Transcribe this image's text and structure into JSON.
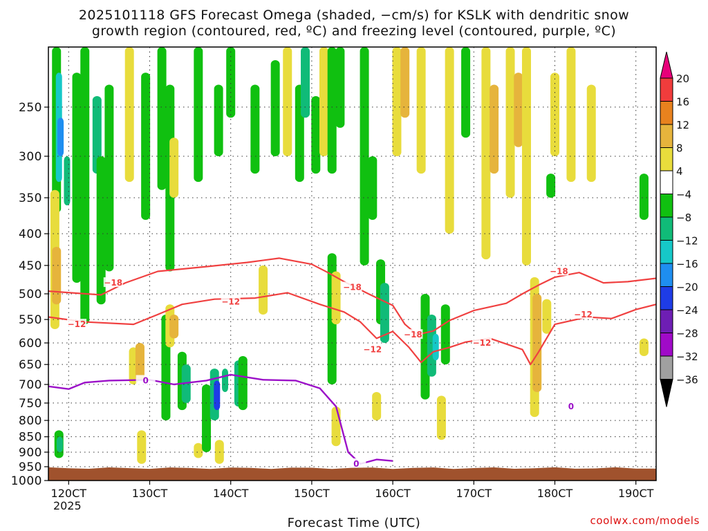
{
  "title_line1": "2025101118 GFS Forecast Omega (shaded, −cm/s) for KSLK with dendritic snow",
  "title_line2": "growth region (contoured, red, ºC) and freezing level (contoured, purple, ºC)",
  "credit": "coolwx.com/models",
  "chart_data": {
    "type": "heatmap",
    "title": "2025101118 GFS Forecast Omega (shaded, −cm/s) for KSLK with dendritic snow growth region (contoured, red, ºC) and freezing level (contoured, purple, ºC)",
    "xlabel": "Forecast Time (UTC)",
    "ylabel": "",
    "x_range_hours": [
      117.5,
      192.5
    ],
    "y_range_hPa": [
      200,
      1000
    ],
    "y_scale": "log-pressure",
    "grid": true,
    "x_ticks": [
      {
        "hour": 120,
        "label": "120CT",
        "sub": "2025"
      },
      {
        "hour": 130,
        "label": "130CT"
      },
      {
        "hour": 140,
        "label": "140CT"
      },
      {
        "hour": 150,
        "label": "150CT"
      },
      {
        "hour": 160,
        "label": "160CT"
      },
      {
        "hour": 170,
        "label": "170CT"
      },
      {
        "hour": 180,
        "label": "180CT"
      },
      {
        "hour": 190,
        "label": "190CT"
      }
    ],
    "y_ticks": [
      250,
      300,
      350,
      400,
      450,
      500,
      550,
      600,
      650,
      700,
      750,
      800,
      850,
      900,
      950,
      1000
    ],
    "colorbar": {
      "bins": [
        {
          "range": [
            20,
            99
          ],
          "color": "#e8007a"
        },
        {
          "range": [
            16,
            20
          ],
          "color": "#f03c3c"
        },
        {
          "range": [
            12,
            16
          ],
          "color": "#e8821e"
        },
        {
          "range": [
            8,
            12
          ],
          "color": "#e6b43c"
        },
        {
          "range": [
            4,
            8
          ],
          "color": "#e8dc3c"
        },
        {
          "range": [
            -4,
            4
          ],
          "color": "#ffffff"
        },
        {
          "range": [
            -8,
            -4
          ],
          "color": "#10c010"
        },
        {
          "range": [
            -12,
            -8
          ],
          "color": "#10bb78"
        },
        {
          "range": [
            -16,
            -12
          ],
          "color": "#16c8c8"
        },
        {
          "range": [
            -20,
            -16
          ],
          "color": "#1e8ef0"
        },
        {
          "range": [
            -24,
            -20
          ],
          "color": "#1e3ce6"
        },
        {
          "range": [
            -28,
            -24
          ],
          "color": "#6e1eb4"
        },
        {
          "range": [
            -32,
            -28
          ],
          "color": "#a00ac8"
        },
        {
          "range": [
            -36,
            -32
          ],
          "color": "#a0a0a0"
        },
        {
          "range": [
            -99,
            -36
          ],
          "color": "#000000"
        }
      ],
      "labels": [
        "20",
        "16",
        "12",
        "8",
        "4",
        "−4",
        "−8",
        "−12",
        "−16",
        "−20",
        "−24",
        "−28",
        "−32",
        "−36"
      ]
    },
    "omega_patches": [
      {
        "hour": 118.5,
        "p_top": 200,
        "p_bot": 370,
        "value": -8
      },
      {
        "hour": 118.8,
        "p_top": 220,
        "p_bot": 330,
        "value": -14
      },
      {
        "hour": 119.0,
        "p_top": 260,
        "p_bot": 300,
        "value": -18
      },
      {
        "hour": 119.8,
        "p_top": 300,
        "p_bot": 360,
        "value": -12
      },
      {
        "hour": 118.3,
        "p_top": 340,
        "p_bot": 570,
        "value": 6
      },
      {
        "hour": 118.5,
        "p_top": 420,
        "p_bot": 520,
        "value": 9
      },
      {
        "hour": 118.8,
        "p_top": 830,
        "p_bot": 920,
        "value": -8
      },
      {
        "hour": 118.9,
        "p_top": 850,
        "p_bot": 900,
        "value": -12
      },
      {
        "hour": 121.0,
        "p_top": 220,
        "p_bot": 480,
        "value": -6
      },
      {
        "hour": 122.0,
        "p_top": 200,
        "p_bot": 560,
        "value": -6
      },
      {
        "hour": 123.5,
        "p_top": 240,
        "p_bot": 320,
        "value": -10
      },
      {
        "hour": 124.0,
        "p_top": 300,
        "p_bot": 520,
        "value": -6
      },
      {
        "hour": 125.0,
        "p_top": 230,
        "p_bot": 460,
        "value": -6
      },
      {
        "hour": 127.5,
        "p_top": 200,
        "p_bot": 330,
        "value": 5
      },
      {
        "hour": 129.5,
        "p_top": 220,
        "p_bot": 380,
        "value": -6
      },
      {
        "hour": 131.5,
        "p_top": 200,
        "p_bot": 340,
        "value": -6
      },
      {
        "hour": 132.5,
        "p_top": 230,
        "p_bot": 460,
        "value": -6
      },
      {
        "hour": 133.0,
        "p_top": 280,
        "p_bot": 350,
        "value": 5
      },
      {
        "hour": 128.0,
        "p_top": 610,
        "p_bot": 700,
        "value": 6
      },
      {
        "hour": 128.8,
        "p_top": 600,
        "p_bot": 690,
        "value": 10
      },
      {
        "hour": 129.0,
        "p_top": 830,
        "p_bot": 940,
        "value": 5
      },
      {
        "hour": 132.0,
        "p_top": 540,
        "p_bot": 800,
        "value": -6
      },
      {
        "hour": 132.5,
        "p_top": 520,
        "p_bot": 610,
        "value": 5
      },
      {
        "hour": 133.0,
        "p_top": 540,
        "p_bot": 590,
        "value": 10
      },
      {
        "hour": 134.0,
        "p_top": 620,
        "p_bot": 770,
        "value": -6
      },
      {
        "hour": 134.5,
        "p_top": 650,
        "p_bot": 750,
        "value": -10
      },
      {
        "hour": 136.0,
        "p_top": 870,
        "p_bot": 920,
        "value": 5
      },
      {
        "hour": 137.0,
        "p_top": 700,
        "p_bot": 900,
        "value": -6
      },
      {
        "hour": 138.0,
        "p_top": 660,
        "p_bot": 800,
        "value": -10
      },
      {
        "hour": 138.3,
        "p_top": 690,
        "p_bot": 770,
        "value": -22
      },
      {
        "hour": 139.3,
        "p_top": 660,
        "p_bot": 720,
        "value": -12
      },
      {
        "hour": 138.6,
        "p_top": 860,
        "p_bot": 940,
        "value": 7
      },
      {
        "hour": 141.0,
        "p_top": 640,
        "p_bot": 760,
        "value": -10
      },
      {
        "hour": 141.5,
        "p_top": 630,
        "p_bot": 770,
        "value": -6
      },
      {
        "hour": 136.0,
        "p_top": 200,
        "p_bot": 330,
        "value": -6
      },
      {
        "hour": 138.5,
        "p_top": 230,
        "p_bot": 300,
        "value": -6
      },
      {
        "hour": 140.0,
        "p_top": 200,
        "p_bot": 260,
        "value": -6
      },
      {
        "hour": 143.0,
        "p_top": 230,
        "p_bot": 320,
        "value": -6
      },
      {
        "hour": 145.5,
        "p_top": 210,
        "p_bot": 300,
        "value": -6
      },
      {
        "hour": 147.0,
        "p_top": 200,
        "p_bot": 300,
        "value": 5
      },
      {
        "hour": 148.5,
        "p_top": 230,
        "p_bot": 330,
        "value": -6
      },
      {
        "hour": 149.2,
        "p_top": 200,
        "p_bot": 260,
        "value": -10
      },
      {
        "hour": 150.5,
        "p_top": 240,
        "p_bot": 320,
        "value": -6
      },
      {
        "hour": 151.5,
        "p_top": 200,
        "p_bot": 300,
        "value": 6
      },
      {
        "hour": 152.5,
        "p_top": 200,
        "p_bot": 320,
        "value": -6
      },
      {
        "hour": 153.5,
        "p_top": 200,
        "p_bot": 270,
        "value": -6
      },
      {
        "hour": 144.0,
        "p_top": 450,
        "p_bot": 540,
        "value": 5
      },
      {
        "hour": 152.5,
        "p_top": 430,
        "p_bot": 700,
        "value": -6
      },
      {
        "hour": 153.0,
        "p_top": 460,
        "p_bot": 560,
        "value": 5
      },
      {
        "hour": 153.0,
        "p_top": 760,
        "p_bot": 880,
        "value": 5
      },
      {
        "hour": 156.5,
        "p_top": 200,
        "p_bot": 450,
        "value": -6
      },
      {
        "hour": 157.5,
        "p_top": 300,
        "p_bot": 380,
        "value": -6
      },
      {
        "hour": 158.5,
        "p_top": 440,
        "p_bot": 560,
        "value": -6
      },
      {
        "hour": 159.0,
        "p_top": 480,
        "p_bot": 600,
        "value": -10
      },
      {
        "hour": 160.5,
        "p_top": 200,
        "p_bot": 300,
        "value": 6
      },
      {
        "hour": 161.5,
        "p_top": 200,
        "p_bot": 260,
        "value": 10
      },
      {
        "hour": 163.5,
        "p_top": 200,
        "p_bot": 320,
        "value": 7
      },
      {
        "hour": 158.0,
        "p_top": 720,
        "p_bot": 800,
        "value": 7
      },
      {
        "hour": 164.0,
        "p_top": 500,
        "p_bot": 740,
        "value": -6
      },
      {
        "hour": 164.8,
        "p_top": 540,
        "p_bot": 680,
        "value": -10
      },
      {
        "hour": 165.3,
        "p_top": 580,
        "p_bot": 640,
        "value": -14
      },
      {
        "hour": 166.5,
        "p_top": 520,
        "p_bot": 650,
        "value": -6
      },
      {
        "hour": 166.0,
        "p_top": 730,
        "p_bot": 860,
        "value": 7
      },
      {
        "hour": 167.0,
        "p_top": 200,
        "p_bot": 400,
        "value": 5
      },
      {
        "hour": 169.0,
        "p_top": 200,
        "p_bot": 280,
        "value": -6
      },
      {
        "hour": 171.5,
        "p_top": 200,
        "p_bot": 440,
        "value": 5
      },
      {
        "hour": 172.5,
        "p_top": 230,
        "p_bot": 320,
        "value": 8
      },
      {
        "hour": 174.5,
        "p_top": 200,
        "p_bot": 350,
        "value": 5
      },
      {
        "hour": 175.5,
        "p_top": 220,
        "p_bot": 290,
        "value": 9
      },
      {
        "hour": 176.5,
        "p_top": 200,
        "p_bot": 450,
        "value": 5
      },
      {
        "hour": 177.5,
        "p_top": 470,
        "p_bot": 790,
        "value": 6
      },
      {
        "hour": 177.8,
        "p_top": 500,
        "p_bot": 720,
        "value": 10
      },
      {
        "hour": 179.0,
        "p_top": 510,
        "p_bot": 580,
        "value": 6
      },
      {
        "hour": 180.0,
        "p_top": 220,
        "p_bot": 300,
        "value": 5
      },
      {
        "hour": 182.0,
        "p_top": 200,
        "p_bot": 330,
        "value": 5
      },
      {
        "hour": 184.5,
        "p_top": 230,
        "p_bot": 330,
        "value": 7
      },
      {
        "hour": 179.5,
        "p_top": 320,
        "p_bot": 350,
        "value": -6
      },
      {
        "hour": 191.0,
        "p_top": 320,
        "p_bot": 380,
        "value": -6
      },
      {
        "hour": 191.0,
        "p_top": 590,
        "p_bot": 630,
        "value": 5
      }
    ],
    "contours": [
      {
        "name": "-18",
        "color": "red",
        "label": "−18",
        "label_at": [
          [
            125.5,
            480
          ],
          [
            155.0,
            488
          ],
          [
            180.5,
            460
          ],
          [
            162.5,
            582
          ]
        ],
        "points": [
          [
            117.5,
            495
          ],
          [
            124,
            502
          ],
          [
            127,
            480
          ],
          [
            131,
            460
          ],
          [
            137,
            452
          ],
          [
            142,
            445
          ],
          [
            146,
            438
          ],
          [
            150,
            448
          ],
          [
            152,
            462
          ],
          [
            154,
            478
          ],
          [
            157,
            500
          ],
          [
            160,
            522
          ],
          [
            161.5,
            560
          ],
          [
            163,
            582
          ],
          [
            165,
            574
          ],
          [
            167,
            552
          ],
          [
            170,
            532
          ],
          [
            174,
            518
          ],
          [
            176,
            500
          ],
          [
            178,
            484
          ],
          [
            180,
            470
          ],
          [
            183,
            462
          ],
          [
            186,
            480
          ],
          [
            189,
            478
          ],
          [
            192.5,
            472
          ]
        ]
      },
      {
        "name": "-12",
        "color": "red",
        "label": "−12",
        "label_at": [
          [
            121.0,
            560
          ],
          [
            140.0,
            515
          ],
          [
            157.5,
            615
          ],
          [
            171.0,
            600
          ],
          [
            183.5,
            540
          ]
        ],
        "points": [
          [
            117.5,
            545
          ],
          [
            122,
            555
          ],
          [
            128,
            560
          ],
          [
            131,
            540
          ],
          [
            134,
            520
          ],
          [
            138,
            510
          ],
          [
            143,
            508
          ],
          [
            147,
            498
          ],
          [
            151,
            520
          ],
          [
            154,
            535
          ],
          [
            156,
            555
          ],
          [
            158,
            590
          ],
          [
            160,
            575
          ],
          [
            162,
            610
          ],
          [
            163.5,
            645
          ],
          [
            165,
            620
          ],
          [
            167,
            610
          ],
          [
            169,
            598
          ],
          [
            172,
            590
          ],
          [
            176,
            615
          ],
          [
            177,
            650
          ],
          [
            178,
            620
          ],
          [
            180,
            560
          ],
          [
            184,
            545
          ],
          [
            187,
            548
          ],
          [
            190,
            530
          ],
          [
            192.5,
            520
          ]
        ]
      },
      {
        "name": "0",
        "color": "purple",
        "label": "0",
        "label_at": [
          [
            129.5,
            690
          ],
          [
            155.5,
            940
          ],
          [
            182.0,
            760
          ]
        ],
        "points": [
          [
            117.5,
            705
          ],
          [
            120,
            712
          ],
          [
            122,
            695
          ],
          [
            125,
            690
          ],
          [
            130,
            688
          ],
          [
            133,
            700
          ],
          [
            137,
            690
          ],
          [
            140,
            675
          ],
          [
            144,
            688
          ],
          [
            148,
            690
          ],
          [
            151,
            710
          ],
          [
            153,
            760
          ],
          [
            154.5,
            900
          ],
          [
            156,
            940
          ],
          [
            158,
            925
          ],
          [
            160,
            930
          ]
        ]
      }
    ],
    "ground_hPa": 955
  }
}
